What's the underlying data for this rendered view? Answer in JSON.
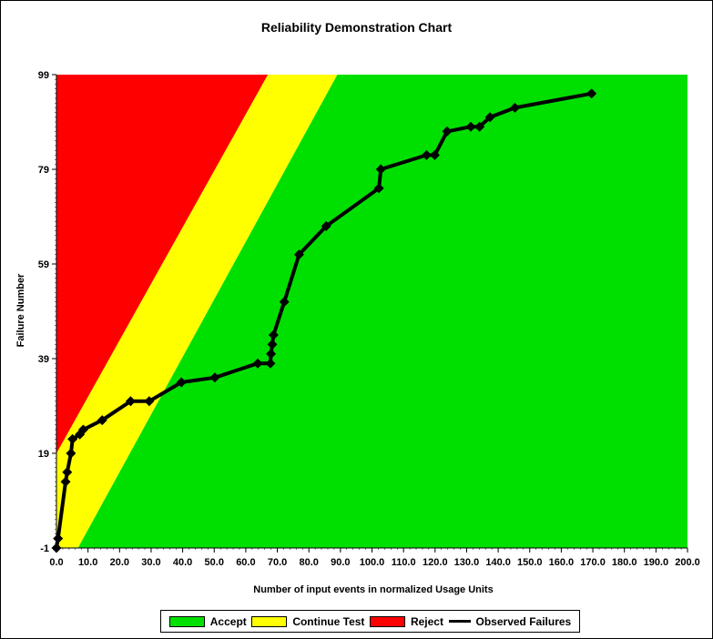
{
  "chart_data": {
    "type": "line",
    "title": "Reliability Demonstration Chart",
    "xlabel": "Number of input events in normalized Usage Units",
    "ylabel": "Failure Number",
    "xlim": [
      0,
      200
    ],
    "ylim": [
      -1,
      99
    ],
    "x_ticks": [
      0,
      10,
      20,
      30,
      40,
      50,
      60,
      70,
      80,
      90,
      100,
      110,
      120,
      130,
      140,
      150,
      160,
      170,
      180,
      190,
      200
    ],
    "x_tick_labels": [
      "0.0",
      "10.0",
      "20.0",
      "30.0",
      "40.0",
      "50.0",
      "60.0",
      "70.0",
      "80.0",
      "90.0",
      "100.0",
      "110.0",
      "120.0",
      "130.0",
      "140.0",
      "150.0",
      "160.0",
      "170.0",
      "180.0",
      "190.0",
      "200.0"
    ],
    "y_ticks": [
      -1,
      19,
      39,
      59,
      79,
      99
    ],
    "regions": [
      {
        "name": "Reject",
        "color": "#ff0000",
        "polygon": [
          [
            0,
            99
          ],
          [
            67,
            99
          ],
          [
            0,
            19
          ]
        ]
      },
      {
        "name": "Continue Test",
        "color": "#ffff00",
        "polygon": [
          [
            67,
            99
          ],
          [
            89,
            99
          ],
          [
            6.8,
            -1
          ],
          [
            0,
            -1
          ],
          [
            0,
            19
          ]
        ]
      },
      {
        "name": "Accept",
        "color": "#00e000",
        "polygon": [
          [
            89,
            99
          ],
          [
            200,
            99
          ],
          [
            200,
            -1
          ],
          [
            6.8,
            -1
          ]
        ]
      }
    ],
    "series": [
      {
        "name": "Observed Failures",
        "color": "#000000",
        "x": [
          0,
          0.5,
          2.9,
          3.4,
          4.6,
          5.1,
          7.4,
          8.5,
          14.5,
          23.5,
          29.4,
          39.6,
          50.2,
          63.8,
          67.8,
          68.0,
          68.4,
          68.8,
          72.2,
          76.9,
          85.5,
          102.2,
          102.8,
          117.3,
          119.9,
          123.8,
          131.3,
          134.1,
          137.4,
          145.3,
          169.6
        ],
        "y": [
          -1,
          1,
          13,
          15,
          19,
          22,
          23,
          24,
          26,
          30,
          30,
          34,
          35,
          38,
          38,
          40,
          42,
          44,
          51,
          61,
          67,
          75,
          79,
          82,
          82,
          87,
          88,
          88,
          90,
          92,
          95
        ]
      }
    ]
  },
  "legend": {
    "accept_label": "Accept",
    "accept_color": "#00e000",
    "continue_label": "Continue Test",
    "continue_color": "#ffff00",
    "reject_label": "Reject",
    "reject_color": "#ff0000",
    "observed_label": "Observed Failures"
  }
}
